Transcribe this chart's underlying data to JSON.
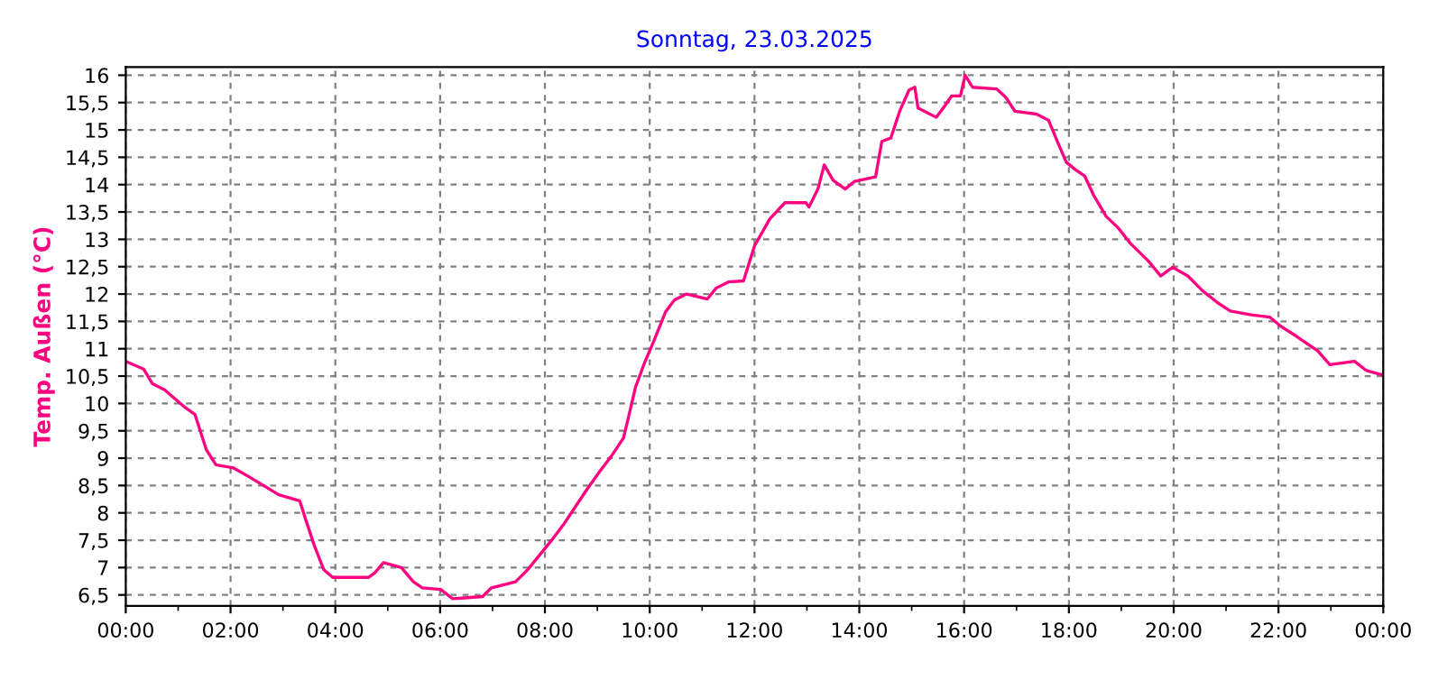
{
  "chart_data": {
    "type": "line",
    "title": "Sonntag, 23.03.2025",
    "ylabel": "Temp. Außen (°C)",
    "x": [
      0,
      0.34,
      0.51,
      0.74,
      0.92,
      1.14,
      1.32,
      1.54,
      1.72,
      2.06,
      2.35,
      2.63,
      2.92,
      3.32,
      3.43,
      3.6,
      3.78,
      3.95,
      4.63,
      4.75,
      4.92,
      5.26,
      5.49,
      5.66,
      6.01,
      6.24,
      6.81,
      6.98,
      7.44,
      7.67,
      7.9,
      8.12,
      8.35,
      8.58,
      8.81,
      9.04,
      9.27,
      9.5,
      9.61,
      9.73,
      9.9,
      10.07,
      10.3,
      10.47,
      10.7,
      11.1,
      11.27,
      11.5,
      11.79,
      12.0,
      12.29,
      12.58,
      12.98,
      13.04,
      13.21,
      13.33,
      13.5,
      13.73,
      13.91,
      14.31,
      14.43,
      14.6,
      14.77,
      14.95,
      15.06,
      15.12,
      15.47,
      15.64,
      15.76,
      15.93,
      16.02,
      16.16,
      16.62,
      16.8,
      16.97,
      17.38,
      17.61,
      17.78,
      17.95,
      18.13,
      18.3,
      18.47,
      18.71,
      18.94,
      19.17,
      19.52,
      19.75,
      19.98,
      20.27,
      20.55,
      20.84,
      21.08,
      21.48,
      21.83,
      22.06,
      22.34,
      22.75,
      22.98,
      23.45,
      23.68,
      24
    ],
    "series": [
      {
        "color": "#ff0080",
        "values": [
          10.77,
          10.63,
          10.36,
          10.25,
          10.1,
          9.92,
          9.8,
          9.15,
          8.88,
          8.82,
          8.66,
          8.5,
          8.33,
          8.22,
          7.89,
          7.4,
          6.96,
          6.82,
          6.82,
          6.9,
          7.09,
          7.0,
          6.74,
          6.63,
          6.6,
          6.43,
          6.47,
          6.63,
          6.74,
          6.96,
          7.23,
          7.49,
          7.78,
          8.11,
          8.44,
          8.75,
          9.04,
          9.37,
          9.81,
          10.3,
          10.74,
          11.12,
          11.67,
          11.89,
          12.0,
          11.91,
          12.11,
          12.22,
          12.24,
          12.88,
          13.37,
          13.67,
          13.67,
          13.59,
          13.92,
          14.36,
          14.08,
          13.92,
          14.06,
          14.14,
          14.79,
          14.85,
          15.34,
          15.73,
          15.78,
          15.4,
          15.23,
          15.45,
          15.62,
          15.62,
          16.0,
          15.78,
          15.75,
          15.59,
          15.34,
          15.29,
          15.18,
          14.79,
          14.41,
          14.27,
          14.16,
          13.81,
          13.42,
          13.21,
          12.93,
          12.6,
          12.33,
          12.49,
          12.33,
          12.06,
          11.84,
          11.69,
          11.62,
          11.58,
          11.4,
          11.23,
          10.96,
          10.71,
          10.77,
          10.6,
          10.52
        ]
      }
    ],
    "xlim": [
      0,
      24
    ],
    "xticks": [
      {
        "value": 0,
        "label": "00:00"
      },
      {
        "value": 1,
        "label": null
      },
      {
        "value": 2,
        "label": "02:00"
      },
      {
        "value": 3,
        "label": null
      },
      {
        "value": 4,
        "label": "04:00"
      },
      {
        "value": 5,
        "label": null
      },
      {
        "value": 6,
        "label": "06:00"
      },
      {
        "value": 7,
        "label": null
      },
      {
        "value": 8,
        "label": "08:00"
      },
      {
        "value": 9,
        "label": null
      },
      {
        "value": 10,
        "label": "10:00"
      },
      {
        "value": 11,
        "label": null
      },
      {
        "value": 12,
        "label": "12:00"
      },
      {
        "value": 13,
        "label": null
      },
      {
        "value": 14,
        "label": "14:00"
      },
      {
        "value": 15,
        "label": null
      },
      {
        "value": 16,
        "label": "16:00"
      },
      {
        "value": 17,
        "label": null
      },
      {
        "value": 18,
        "label": "18:00"
      },
      {
        "value": 19,
        "label": null
      },
      {
        "value": 20,
        "label": "20:00"
      },
      {
        "value": 21,
        "label": null
      },
      {
        "value": 22,
        "label": "22:00"
      },
      {
        "value": 23,
        "label": null
      },
      {
        "value": 24,
        "label": "00:00"
      }
    ],
    "ylim": [
      6.3,
      16.15
    ],
    "yticks": [
      {
        "value": 6.5,
        "label": "6,5"
      },
      7,
      {
        "value": 7.5,
        "label": "7,5"
      },
      8,
      {
        "value": 8.5,
        "label": "8,5"
      },
      9,
      {
        "value": 9.5,
        "label": "9,5"
      },
      10,
      {
        "value": 10.5,
        "label": "10,5"
      },
      11,
      {
        "value": 11.5,
        "label": "11,5"
      },
      12,
      {
        "value": 12.5,
        "label": "12,5"
      },
      13,
      {
        "value": 13.5,
        "label": "13,5"
      },
      14,
      {
        "value": 14.5,
        "label": "14,5"
      },
      15,
      {
        "value": 15.5,
        "label": "15,5"
      },
      16
    ],
    "grid": true,
    "line_style": "solid",
    "marker": "none"
  }
}
